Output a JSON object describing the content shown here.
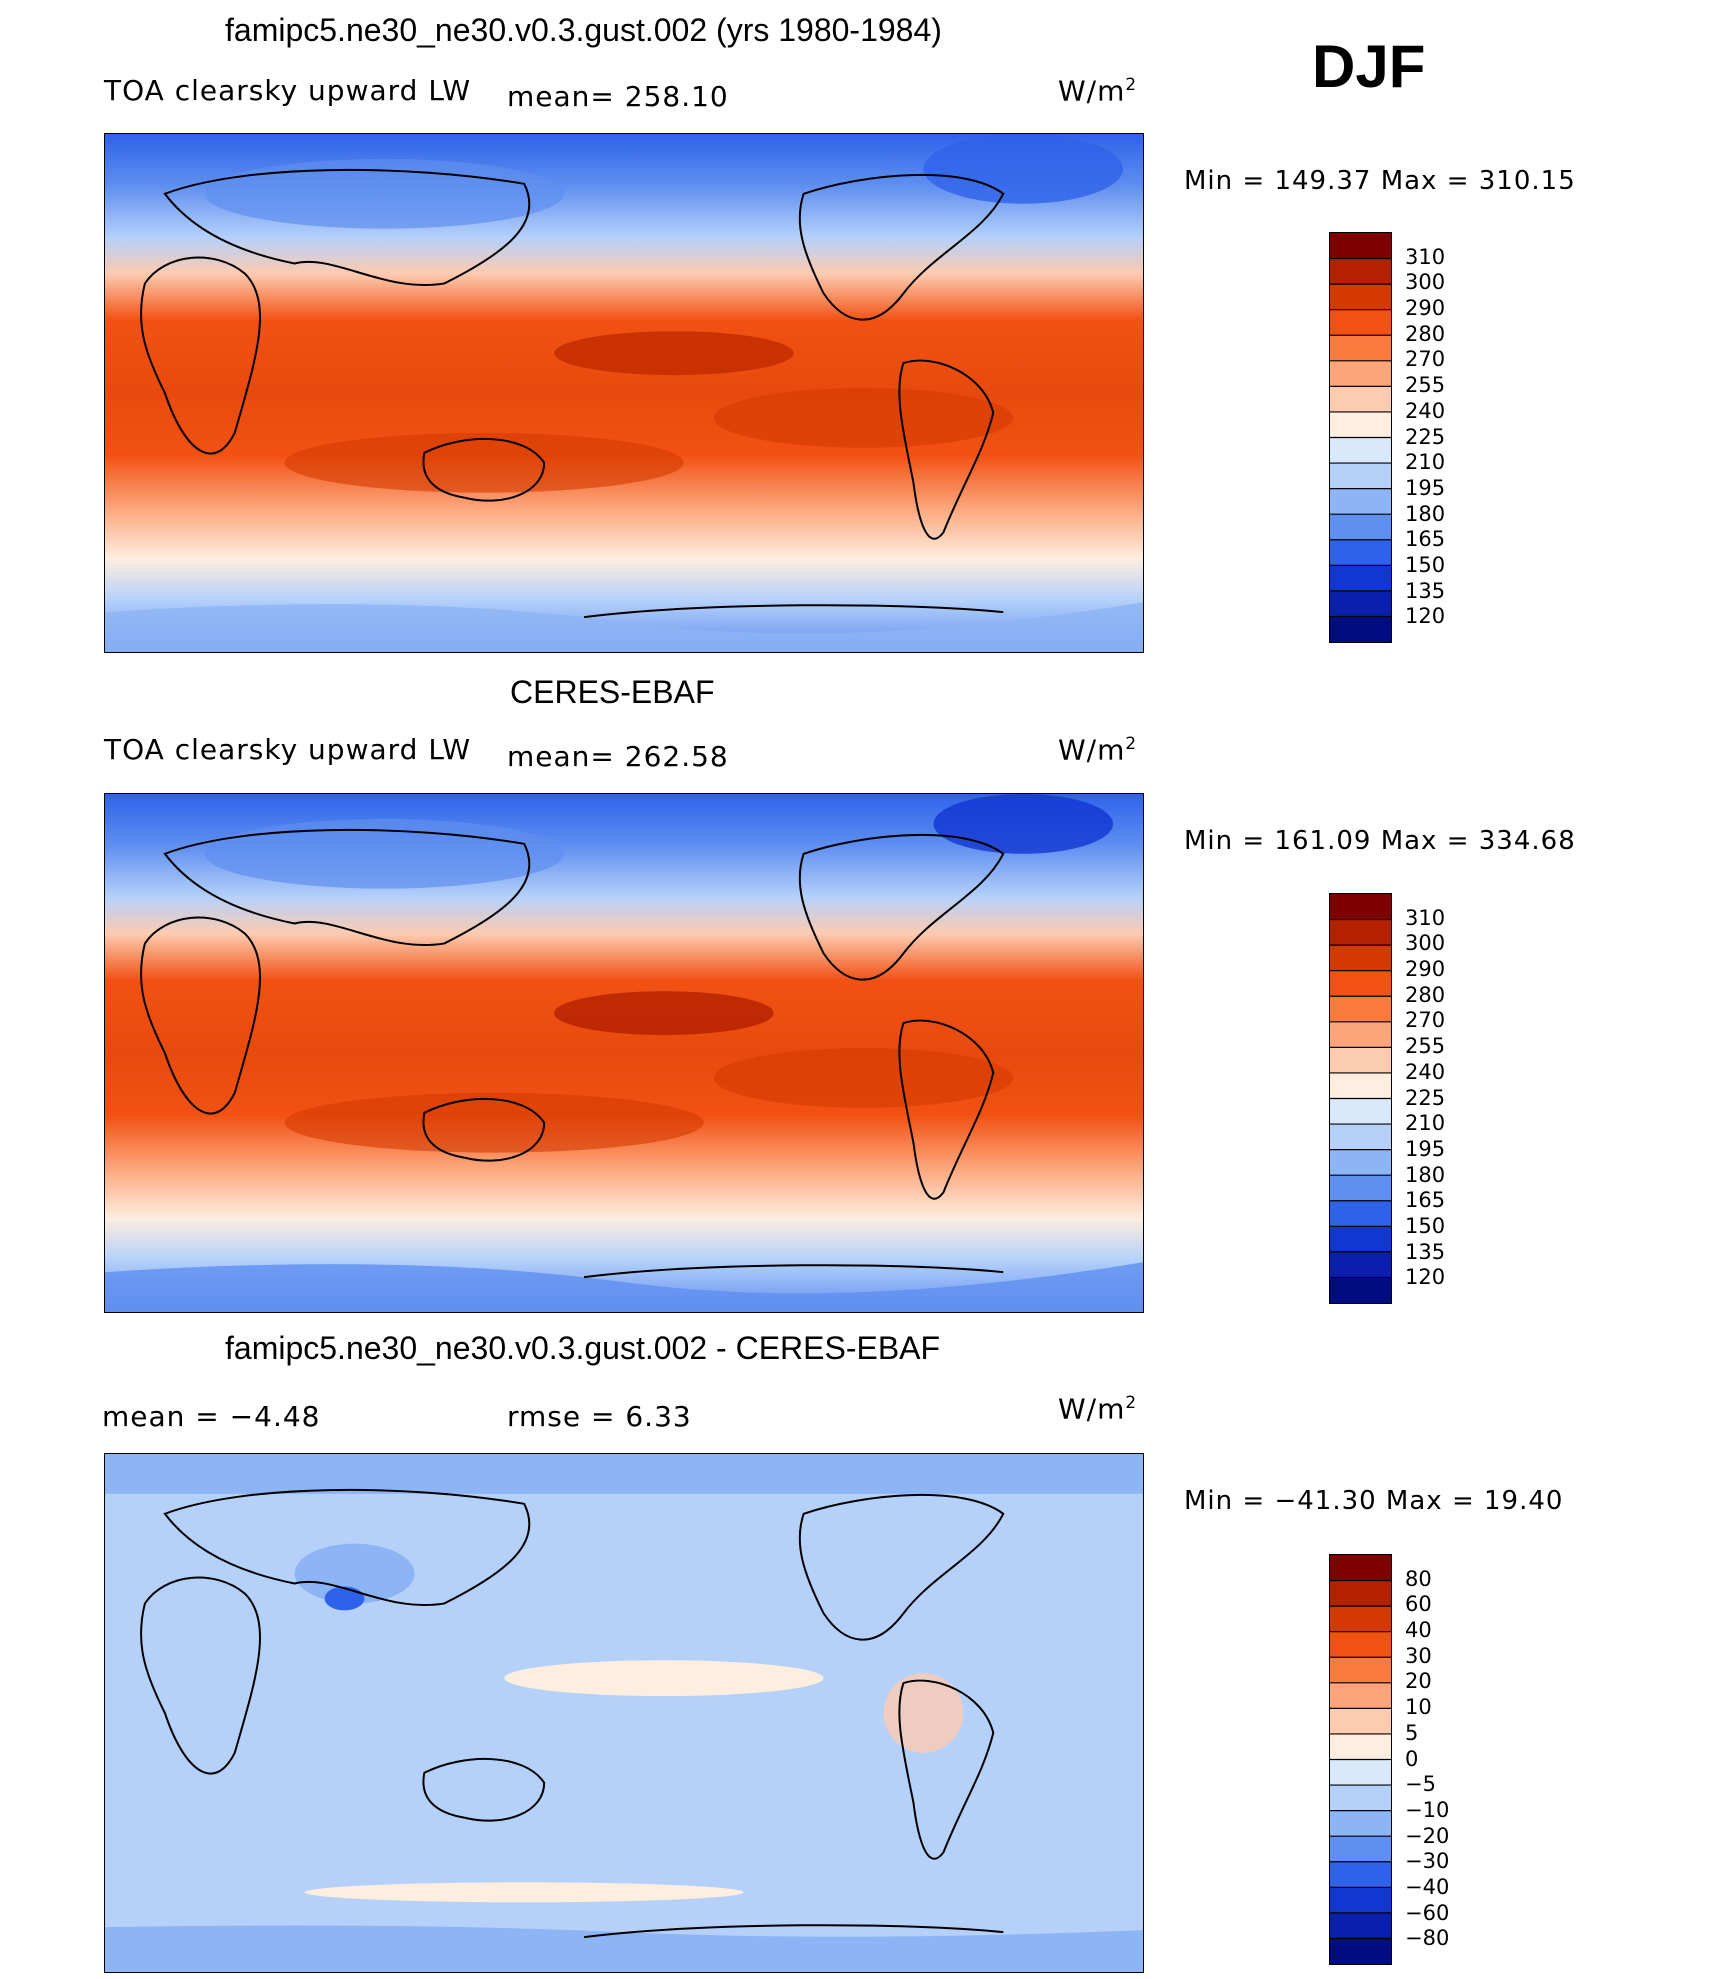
{
  "season": "DJF",
  "panels": [
    {
      "title": "famipc5.ne30_ne30.v0.3.gust.002 (yrs 1980-1984)",
      "left_label": "TOA clearsky upward LW",
      "center_label": "mean=  258.10",
      "units": "W/m",
      "units_sup": "2",
      "minmax": "Min  =  149.37  Max  =  310.15"
    },
    {
      "title": "CERES-EBAF",
      "left_label": "TOA clearsky upward LW",
      "center_label": "mean=  262.58",
      "units": "W/m",
      "units_sup": "2",
      "minmax": "Min  =  161.09  Max  =  334.68"
    },
    {
      "title": "famipc5.ne30_ne30.v0.3.gust.002 - CERES-EBAF",
      "left_label": "mean  =    −4.48",
      "center_label": "rmse  =     6.33",
      "units": "W/m",
      "units_sup": "2",
      "minmax": "Min  =  −41.30  Max  =    19.40"
    }
  ],
  "colorbar_abs": {
    "labels": [
      "310",
      "300",
      "290",
      "280",
      "270",
      "255",
      "240",
      "225",
      "210",
      "195",
      "180",
      "165",
      "150",
      "135",
      "120"
    ],
    "colors": [
      "#7f0000",
      "#b32100",
      "#d43a00",
      "#f25113",
      "#fa7b3c",
      "#fca47a",
      "#fdcbb0",
      "#fdeee0",
      "#d9e9fb",
      "#b5d1fa",
      "#8db4f4",
      "#5f8ff0",
      "#2f62ea",
      "#1236d1",
      "#0a1fae",
      "#000d80"
    ]
  },
  "colorbar_diff": {
    "labels": [
      "80",
      "60",
      "40",
      "30",
      "20",
      "10",
      "5",
      "0",
      "−5",
      "−10",
      "−20",
      "−30",
      "−40",
      "−60",
      "−80"
    ],
    "colors": [
      "#7f0000",
      "#b32100",
      "#d43a00",
      "#f25113",
      "#fa7b3c",
      "#fca47a",
      "#fdcbb0",
      "#fdeee0",
      "#d9e9fb",
      "#b5d1fa",
      "#8db4f4",
      "#5f8ff0",
      "#2f62ea",
      "#1236d1",
      "#0a1fae",
      "#000d80"
    ]
  }
}
